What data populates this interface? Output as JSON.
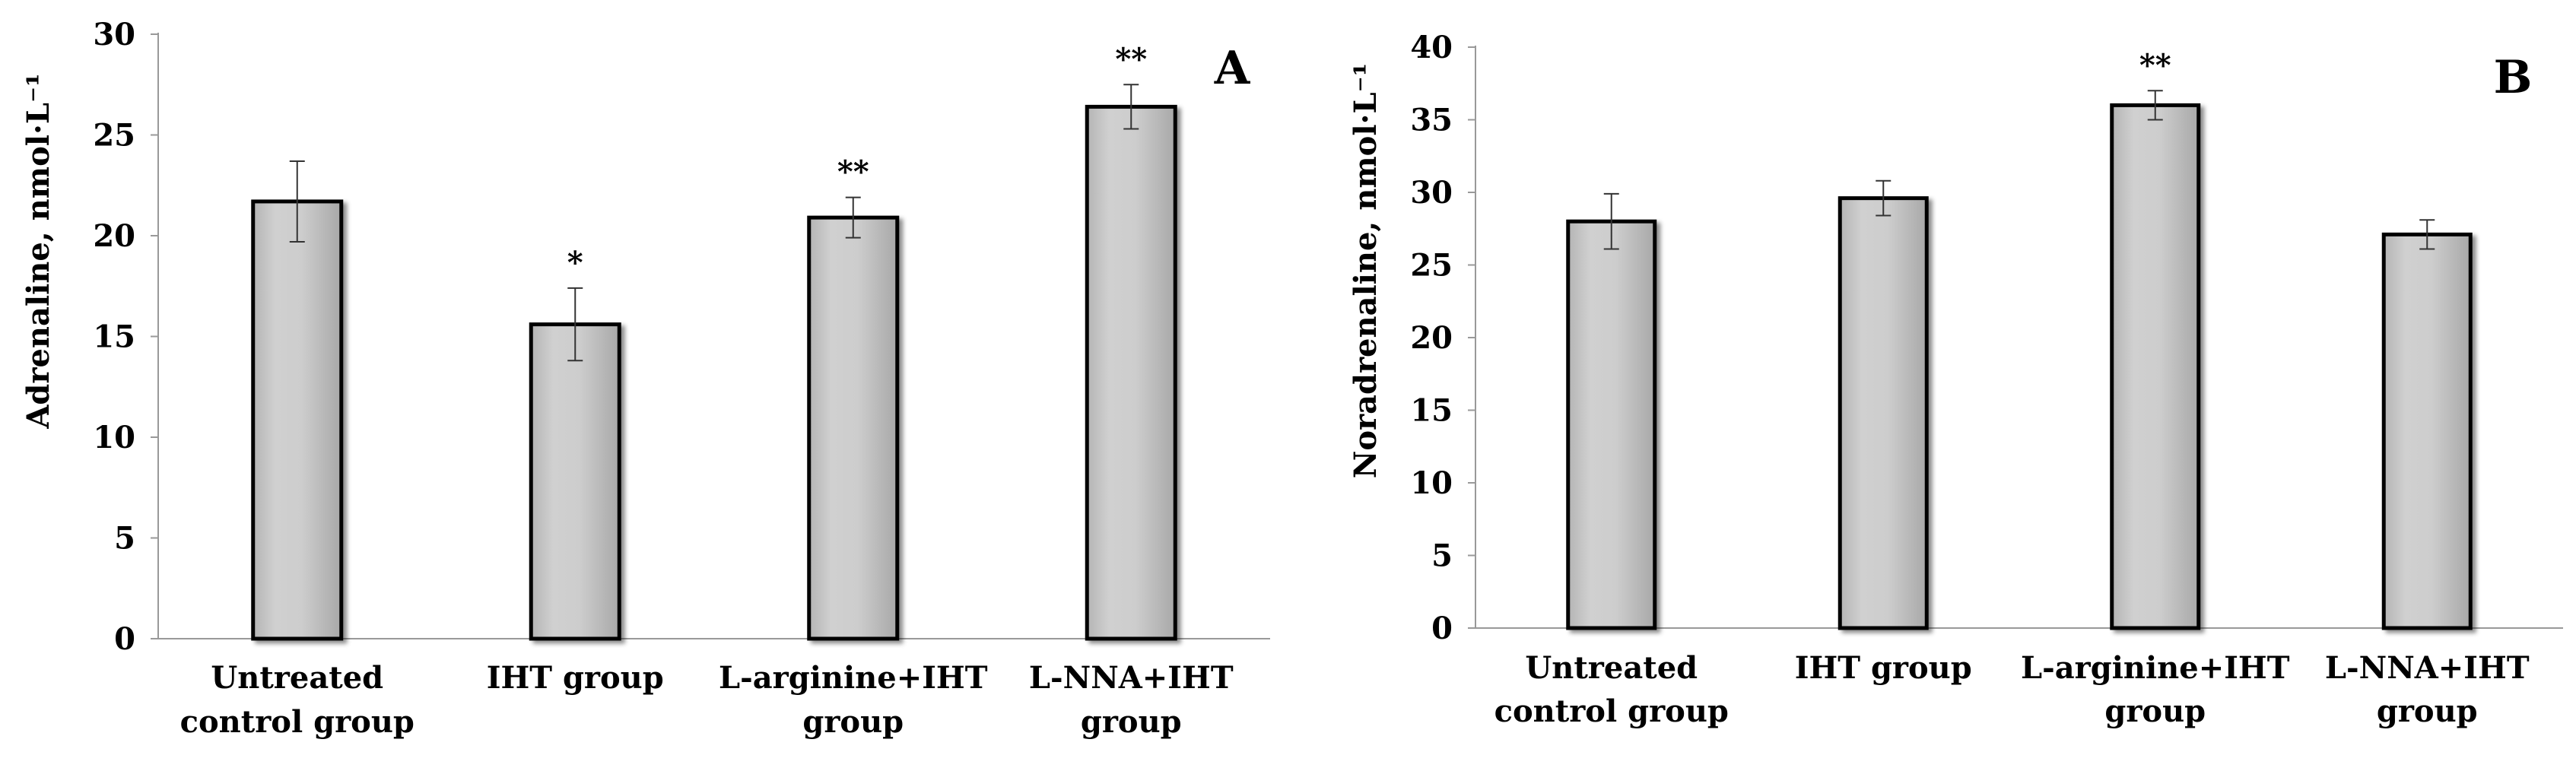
{
  "chart_data": [
    {
      "type": "bar",
      "panel_label": "A",
      "ylabel": "Adrenaline, nmol·L⁻¹",
      "ylim": [
        0,
        30
      ],
      "yticks": [
        "0",
        "5",
        "10",
        "15",
        "20",
        "25",
        "30"
      ],
      "categories": [
        [
          "Untreated",
          "control group"
        ],
        [
          "IHT group"
        ],
        [
          "L-arginine+IHT",
          "group"
        ],
        [
          "L-NNA+IHT",
          "group"
        ]
      ],
      "values": [
        21.7,
        15.6,
        20.9,
        26.4
      ],
      "errors": [
        2.0,
        1.8,
        1.0,
        1.1
      ],
      "significance": [
        "",
        "*",
        "**",
        "**"
      ],
      "bar_color": "#c8c8c8"
    },
    {
      "type": "bar",
      "panel_label": "B",
      "ylabel": "Noradrenaline, nmol·L⁻¹",
      "ylim": [
        0,
        40
      ],
      "yticks": [
        "0",
        "5",
        "10",
        "15",
        "20",
        "25",
        "30",
        "35",
        "40"
      ],
      "categories": [
        [
          "Untreated",
          "control group"
        ],
        [
          "IHT group"
        ],
        [
          "L-arginine+IHT",
          "group"
        ],
        [
          "L-NNA+IHT",
          "group"
        ]
      ],
      "values": [
        28.0,
        29.6,
        36.0,
        27.1
      ],
      "errors": [
        1.9,
        1.2,
        1.0,
        1.0
      ],
      "significance": [
        "",
        "",
        "**",
        ""
      ],
      "bar_color": "#c8c8c8"
    }
  ]
}
